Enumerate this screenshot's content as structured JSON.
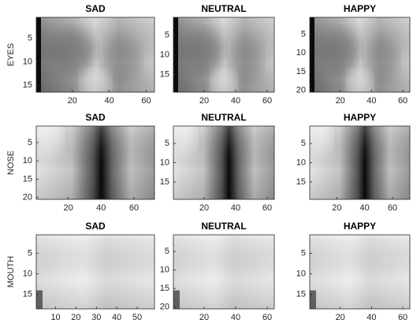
{
  "chart_data": [
    {
      "type": "image",
      "title": "SAD",
      "ylabel": "EYES",
      "xlim": [
        0.5,
        64.5
      ],
      "ylim": [
        0.5,
        16.5
      ],
      "xticks": [
        20,
        40,
        60
      ],
      "yticks": [
        5,
        10,
        15
      ]
    },
    {
      "type": "image",
      "title": "NEUTRAL",
      "xlim": [
        0.5,
        64.5
      ],
      "ylim": [
        0.5,
        19.5
      ],
      "xticks": [
        20,
        40,
        60
      ],
      "yticks": [
        5,
        10,
        15
      ]
    },
    {
      "type": "image",
      "title": "HAPPY",
      "xlim": [
        0.5,
        64.5
      ],
      "ylim": [
        0.5,
        20.5
      ],
      "xticks": [
        20,
        40,
        60
      ],
      "yticks": [
        5,
        10,
        15,
        20
      ]
    },
    {
      "type": "image",
      "title": "SAD",
      "ylabel": "NOSE",
      "xlim": [
        0.5,
        72.5
      ],
      "ylim": [
        0.5,
        20.5
      ],
      "xticks": [
        20,
        40,
        60
      ],
      "yticks": [
        5,
        10,
        15,
        20
      ]
    },
    {
      "type": "image",
      "title": "NEUTRAL",
      "xlim": [
        0.5,
        64.5
      ],
      "ylim": [
        0.5,
        19.5
      ],
      "xticks": [
        20,
        40,
        60
      ],
      "yticks": [
        5,
        10,
        15
      ]
    },
    {
      "type": "image",
      "title": "HAPPY",
      "xlim": [
        0.5,
        72.5
      ],
      "ylim": [
        0.5,
        19.5
      ],
      "xticks": [
        20,
        40,
        60
      ],
      "yticks": [
        5,
        10,
        15
      ]
    },
    {
      "type": "image",
      "title": "SAD",
      "ylabel": "MOUTH",
      "xlim": [
        0.5,
        58.5
      ],
      "ylim": [
        0.5,
        18.5
      ],
      "xticks": [
        10,
        20,
        30,
        40,
        50
      ],
      "yticks": [
        5,
        10,
        15
      ]
    },
    {
      "type": "image",
      "title": "NEUTRAL",
      "xlim": [
        0.5,
        64.5
      ],
      "ylim": [
        0.5,
        20.5
      ],
      "xticks": [
        20,
        40,
        60
      ],
      "yticks": [
        5,
        10,
        15,
        20
      ]
    },
    {
      "type": "image",
      "title": "HAPPY",
      "xlim": [
        0.5,
        64.5
      ],
      "ylim": [
        0.5,
        18.5
      ],
      "xticks": [
        20,
        40,
        60
      ],
      "yticks": [
        5,
        10,
        15
      ]
    }
  ]
}
